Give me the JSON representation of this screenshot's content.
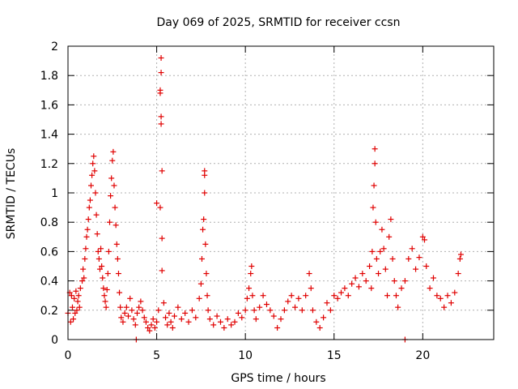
{
  "chart_data": {
    "type": "scatter",
    "title": "Day 069 of 2025, SRMTID for receiver ccsn",
    "xlabel": "GPS time / hours",
    "ylabel": "SRMTID / TECUs",
    "xlim": [
      0,
      24
    ],
    "ylim": [
      0,
      2
    ],
    "xticks": [
      0,
      5,
      10,
      15,
      20
    ],
    "xtick_labels": [
      "0",
      "5",
      "10",
      "15",
      "20"
    ],
    "yticks": [
      0,
      0.2,
      0.4,
      0.6,
      0.8,
      1,
      1.2,
      1.4,
      1.6,
      1.8,
      2
    ],
    "ytick_labels": [
      "0",
      "0.2",
      "0.4",
      "0.6",
      "0.8",
      "1",
      "1.2",
      "1.4",
      "1.6",
      "1.8",
      "2"
    ],
    "grid": true,
    "marker": "+",
    "series_color": "#e00000",
    "series": [
      {
        "name": "SRMTID",
        "points": [
          [
            0.0,
            0.18
          ],
          [
            0.1,
            0.32
          ],
          [
            0.15,
            0.12
          ],
          [
            0.2,
            0.3
          ],
          [
            0.25,
            0.22
          ],
          [
            0.3,
            0.14
          ],
          [
            0.35,
            0.28
          ],
          [
            0.4,
            0.18
          ],
          [
            0.45,
            0.33
          ],
          [
            0.5,
            0.2
          ],
          [
            0.55,
            0.26
          ],
          [
            0.6,
            0.3
          ],
          [
            0.65,
            0.22
          ],
          [
            0.7,
            0.35
          ],
          [
            0.8,
            0.4
          ],
          [
            0.85,
            0.48
          ],
          [
            0.9,
            0.42
          ],
          [
            0.95,
            0.55
          ],
          [
            1.0,
            0.62
          ],
          [
            1.05,
            0.7
          ],
          [
            1.1,
            0.75
          ],
          [
            1.15,
            0.82
          ],
          [
            1.2,
            0.9
          ],
          [
            1.25,
            0.95
          ],
          [
            1.3,
            1.05
          ],
          [
            1.35,
            1.12
          ],
          [
            1.4,
            1.2
          ],
          [
            1.45,
            1.25
          ],
          [
            1.5,
            1.15
          ],
          [
            1.55,
            1.0
          ],
          [
            1.6,
            0.85
          ],
          [
            1.65,
            0.72
          ],
          [
            1.7,
            0.6
          ],
          [
            1.75,
            0.55
          ],
          [
            1.8,
            0.48
          ],
          [
            1.85,
            0.62
          ],
          [
            1.9,
            0.5
          ],
          [
            1.95,
            0.42
          ],
          [
            2.0,
            0.35
          ],
          [
            2.05,
            0.3
          ],
          [
            2.1,
            0.26
          ],
          [
            2.15,
            0.22
          ],
          [
            2.2,
            0.34
          ],
          [
            2.25,
            0.45
          ],
          [
            2.3,
            0.6
          ],
          [
            2.35,
            0.8
          ],
          [
            2.4,
            0.98
          ],
          [
            2.45,
            1.1
          ],
          [
            2.5,
            1.22
          ],
          [
            2.55,
            1.28
          ],
          [
            2.6,
            1.05
          ],
          [
            2.65,
            0.9
          ],
          [
            2.7,
            0.78
          ],
          [
            2.75,
            0.65
          ],
          [
            2.8,
            0.55
          ],
          [
            2.85,
            0.45
          ],
          [
            2.9,
            0.32
          ],
          [
            2.95,
            0.22
          ],
          [
            3.0,
            0.15
          ],
          [
            3.1,
            0.12
          ],
          [
            3.2,
            0.18
          ],
          [
            3.3,
            0.22
          ],
          [
            3.4,
            0.16
          ],
          [
            3.5,
            0.28
          ],
          [
            3.6,
            0.2
          ],
          [
            3.7,
            0.14
          ],
          [
            3.8,
            0.1
          ],
          [
            3.85,
            0.0
          ],
          [
            3.9,
            0.18
          ],
          [
            4.0,
            0.22
          ],
          [
            4.1,
            0.26
          ],
          [
            4.2,
            0.2
          ],
          [
            4.3,
            0.15
          ],
          [
            4.4,
            0.12
          ],
          [
            4.5,
            0.08
          ],
          [
            4.6,
            0.06
          ],
          [
            4.7,
            0.1
          ],
          [
            4.8,
            0.14
          ],
          [
            4.9,
            0.08
          ],
          [
            5.0,
            0.12
          ],
          [
            5.0,
            0.93
          ],
          [
            5.1,
            0.2
          ],
          [
            5.2,
            0.9
          ],
          [
            5.2,
            1.68
          ],
          [
            5.2,
            1.7
          ],
          [
            5.25,
            1.47
          ],
          [
            5.25,
            1.52
          ],
          [
            5.25,
            1.82
          ],
          [
            5.25,
            1.92
          ],
          [
            5.3,
            1.15
          ],
          [
            5.3,
            0.69
          ],
          [
            5.3,
            0.47
          ],
          [
            5.4,
            0.25
          ],
          [
            5.5,
            0.15
          ],
          [
            5.6,
            0.1
          ],
          [
            5.7,
            0.18
          ],
          [
            5.8,
            0.12
          ],
          [
            5.9,
            0.08
          ],
          [
            6.0,
            0.16
          ],
          [
            6.2,
            0.22
          ],
          [
            6.4,
            0.14
          ],
          [
            6.6,
            0.18
          ],
          [
            6.8,
            0.12
          ],
          [
            7.0,
            0.2
          ],
          [
            7.2,
            0.15
          ],
          [
            7.4,
            0.28
          ],
          [
            7.5,
            0.38
          ],
          [
            7.55,
            0.55
          ],
          [
            7.6,
            0.75
          ],
          [
            7.65,
            0.82
          ],
          [
            7.7,
            1.0
          ],
          [
            7.7,
            1.12
          ],
          [
            7.7,
            1.15
          ],
          [
            7.75,
            0.65
          ],
          [
            7.8,
            0.45
          ],
          [
            7.85,
            0.3
          ],
          [
            7.9,
            0.2
          ],
          [
            8.0,
            0.14
          ],
          [
            8.2,
            0.1
          ],
          [
            8.4,
            0.16
          ],
          [
            8.6,
            0.12
          ],
          [
            8.8,
            0.08
          ],
          [
            9.0,
            0.14
          ],
          [
            9.2,
            0.1
          ],
          [
            9.4,
            0.12
          ],
          [
            9.6,
            0.18
          ],
          [
            9.8,
            0.15
          ],
          [
            10.0,
            0.2
          ],
          [
            10.1,
            0.28
          ],
          [
            10.2,
            0.35
          ],
          [
            10.3,
            0.45
          ],
          [
            10.35,
            0.5
          ],
          [
            10.4,
            0.3
          ],
          [
            10.5,
            0.2
          ],
          [
            10.6,
            0.14
          ],
          [
            10.8,
            0.22
          ],
          [
            11.0,
            0.3
          ],
          [
            11.2,
            0.24
          ],
          [
            11.4,
            0.2
          ],
          [
            11.6,
            0.16
          ],
          [
            11.8,
            0.08
          ],
          [
            12.0,
            0.14
          ],
          [
            12.2,
            0.2
          ],
          [
            12.4,
            0.26
          ],
          [
            12.6,
            0.3
          ],
          [
            12.8,
            0.22
          ],
          [
            13.0,
            0.28
          ],
          [
            13.2,
            0.2
          ],
          [
            13.4,
            0.3
          ],
          [
            13.6,
            0.45
          ],
          [
            13.7,
            0.35
          ],
          [
            13.8,
            0.2
          ],
          [
            14.0,
            0.12
          ],
          [
            14.2,
            0.08
          ],
          [
            14.4,
            0.15
          ],
          [
            14.6,
            0.25
          ],
          [
            14.8,
            0.2
          ],
          [
            15.0,
            0.3
          ],
          [
            15.2,
            0.28
          ],
          [
            15.4,
            0.32
          ],
          [
            15.6,
            0.35
          ],
          [
            15.8,
            0.3
          ],
          [
            16.0,
            0.38
          ],
          [
            16.2,
            0.42
          ],
          [
            16.4,
            0.36
          ],
          [
            16.6,
            0.45
          ],
          [
            16.8,
            0.4
          ],
          [
            17.0,
            0.5
          ],
          [
            17.1,
            0.35
          ],
          [
            17.15,
            0.6
          ],
          [
            17.2,
            0.9
          ],
          [
            17.25,
            1.05
          ],
          [
            17.3,
            1.2
          ],
          [
            17.3,
            1.3
          ],
          [
            17.35,
            0.8
          ],
          [
            17.4,
            0.55
          ],
          [
            17.5,
            0.45
          ],
          [
            17.6,
            0.6
          ],
          [
            17.7,
            0.75
          ],
          [
            17.8,
            0.62
          ],
          [
            17.9,
            0.48
          ],
          [
            18.0,
            0.3
          ],
          [
            18.1,
            0.7
          ],
          [
            18.2,
            0.82
          ],
          [
            18.3,
            0.55
          ],
          [
            18.4,
            0.4
          ],
          [
            18.5,
            0.3
          ],
          [
            18.6,
            0.22
          ],
          [
            18.8,
            0.35
          ],
          [
            19.0,
            0.0
          ],
          [
            19.0,
            0.4
          ],
          [
            19.2,
            0.55
          ],
          [
            19.4,
            0.62
          ],
          [
            19.6,
            0.48
          ],
          [
            19.8,
            0.56
          ],
          [
            20.0,
            0.7
          ],
          [
            20.1,
            0.68
          ],
          [
            20.2,
            0.5
          ],
          [
            20.4,
            0.35
          ],
          [
            20.6,
            0.42
          ],
          [
            20.8,
            0.3
          ],
          [
            21.0,
            0.28
          ],
          [
            21.2,
            0.22
          ],
          [
            21.4,
            0.3
          ],
          [
            21.6,
            0.25
          ],
          [
            21.8,
            0.32
          ],
          [
            22.0,
            0.45
          ],
          [
            22.1,
            0.55
          ],
          [
            22.15,
            0.58
          ]
        ]
      }
    ]
  }
}
